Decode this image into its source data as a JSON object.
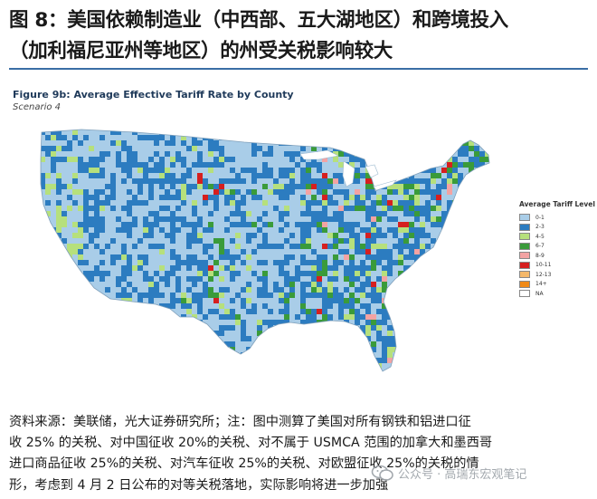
{
  "header": {
    "title_line1": "图 8：美国依赖制造业（中西部、五大湖地区）和跨境投入",
    "title_line2": "（加利福尼亚州等地区）的州受关税影响较大"
  },
  "figure": {
    "title": "Figure 9b: Average Effective Tariff Rate by County",
    "subtitle": "Scenario 4"
  },
  "legend": {
    "title": "Average Tariff Level",
    "items": [
      {
        "label": "0-1",
        "color": "#a9cde8"
      },
      {
        "label": "2-3",
        "color": "#2c7cc0"
      },
      {
        "label": "4-5",
        "color": "#b6e07c"
      },
      {
        "label": "6-7",
        "color": "#3a9b3a"
      },
      {
        "label": "8-9",
        "color": "#f3a3a3"
      },
      {
        "label": "10-11",
        "color": "#d61f1f"
      },
      {
        "label": "12-13",
        "color": "#f4b86a"
      },
      {
        "label": "14+",
        "color": "#f08a18"
      },
      {
        "label": "NA",
        "color": "#ffffff"
      }
    ]
  },
  "source_note": {
    "line1": "资料来源：美联储，光大证券研究所；注：图中测算了美国对所有钢铁和铝进口征",
    "line2": "收 25% 的关税、对中国征收 20%的关税、对不属于 USMCA 范围的加拿大和墨西哥",
    "line3": "进口商品征收  25%的关税、对汽车征收  25%的关税、对欧盟征收  25%的关税的情",
    "line4": "形，考虑到 4 月 2 日公布的对等关税落地，实际影响将进一步加强"
  },
  "watermark": {
    "text": "公众号 · 高瑞东宏观笔记"
  }
}
